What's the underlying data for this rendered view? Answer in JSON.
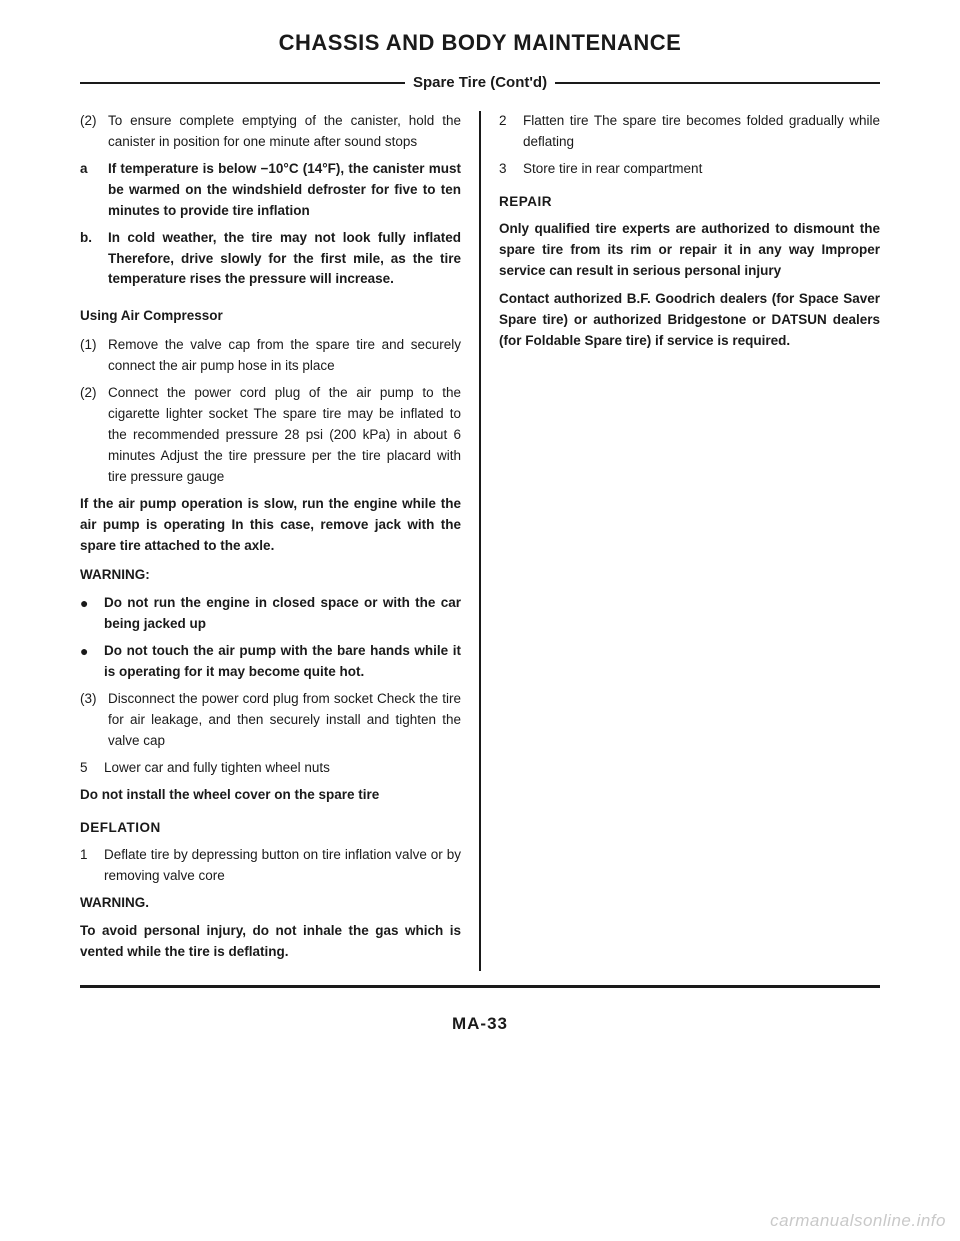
{
  "header": {
    "main_title": "CHASSIS AND BODY MAINTENANCE",
    "subtitle": "Spare Tire (Cont'd)"
  },
  "left": {
    "item2_label": "(2)",
    "item2_text": "To ensure complete emptying of the canister, hold the canister in position for one minute after sound stops",
    "item_a_label": "a",
    "item_a_text": "If temperature is below −10°C (14°F), the canister must be warmed on the windshield defroster for five to ten minutes to provide tire inflation",
    "item_b_label": "b.",
    "item_b_text": "In cold weather, the tire may not look fully inflated  Therefore, drive slowly for the first mile, as the tire temperature rises the pressure will increase.",
    "using_air_head": "Using Air Compressor",
    "air1_label": "(1)",
    "air1_text": "Remove the valve cap from the spare tire and securely connect the air pump hose in its place",
    "air2_label": "(2)",
    "air2_text": "Connect the power cord plug of the air pump to the cigarette lighter socket  The spare tire may be inflated to the recommended pressure 28 psi (200 kPa) in about 6 minutes  Adjust the tire pressure per the tire placard with tire pressure gauge",
    "if_air_pump": "If the air pump operation is slow, run the engine while the air pump is operating  In this case, remove jack with the spare tire attached to the axle.",
    "warning1_head": "WARNING:",
    "warn_b1": "Do not run the engine in closed space or with the car being jacked up",
    "warn_b2": "Do not touch the air pump with the bare hands while it is operating for it may become quite hot.",
    "air3_label": "(3)",
    "air3_text": "Disconnect the power cord plug from socket  Check the tire for air leakage, and then securely install and tighten the valve cap",
    "step5_label": "5",
    "step5_text": "Lower car and fully tighten wheel nuts",
    "do_not_install": "Do not install the wheel cover on the spare tire",
    "deflation_head": "DEFLATION",
    "def1_label": "1",
    "def1_text": "Deflate tire by depressing button on tire inflation valve or by removing valve core",
    "warning2_head": "WARNING.",
    "warning2_text": "To avoid personal injury, do not inhale the gas which is vented while the tire is deflating."
  },
  "right": {
    "r2_label": "2",
    "r2_text": "Flatten tire  The spare tire becomes folded gradually while deflating",
    "r3_label": "3",
    "r3_text": "Store tire in rear compartment",
    "repair_head": "REPAIR",
    "repair_p1": "Only qualified tire experts are authorized to dismount the spare tire from its rim or repair it in any way  Improper service can result in serious personal injury",
    "repair_p2": "Contact authorized B.F. Goodrich dealers (for Space Saver Spare tire) or authorized Bridgestone or DATSUN dealers (for Foldable Spare tire) if service is required."
  },
  "footer": {
    "page": "MA-33",
    "watermark": "carmanualsonline.info"
  },
  "colors": {
    "text": "#1a1a1a",
    "bg": "#ffffff",
    "watermark": "#c9c9c9"
  }
}
